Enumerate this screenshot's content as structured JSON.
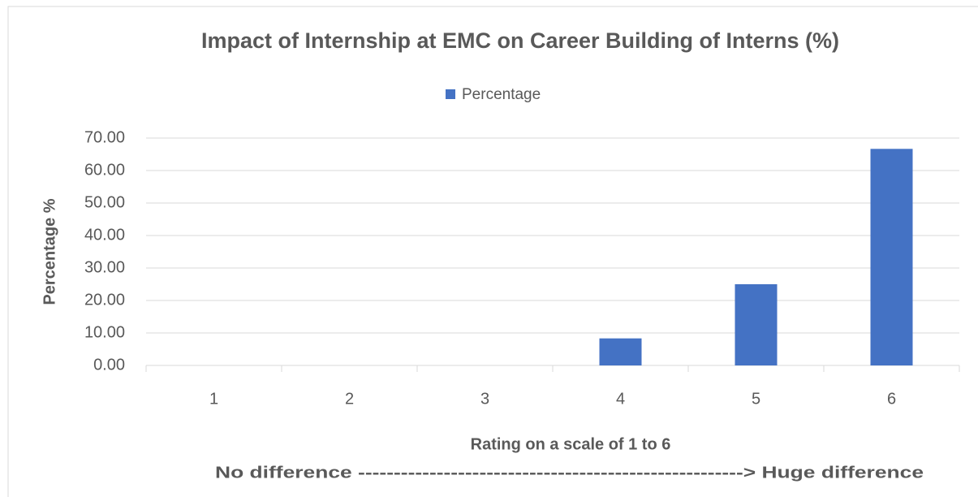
{
  "chart_data": {
    "type": "bar",
    "title": "Impact of Internship at EMC on Career Building of Interns (%)",
    "categories": [
      "1",
      "2",
      "3",
      "4",
      "5",
      "6"
    ],
    "series": [
      {
        "name": "Percentage",
        "color": "#4472c4",
        "values": [
          0,
          0,
          0,
          8.33,
          25,
          66.67
        ]
      }
    ],
    "ylabel": "Percentage %",
    "xlabel": "Rating on a scale of 1 to 6",
    "annotation": "No difference ------------------------------------------------------> Huge difference",
    "ylim": [
      0,
      70
    ],
    "yticks": [
      {
        "value": 0,
        "label": "0.00"
      },
      {
        "value": 10,
        "label": "10.00"
      },
      {
        "value": 20,
        "label": "20.00"
      },
      {
        "value": 30,
        "label": "30.00"
      },
      {
        "value": 40,
        "label": "40.00"
      },
      {
        "value": 50,
        "label": "50.00"
      },
      {
        "value": 60,
        "label": "60.00"
      },
      {
        "value": 70,
        "label": "70.00"
      }
    ],
    "grid": true,
    "legend": "top"
  }
}
